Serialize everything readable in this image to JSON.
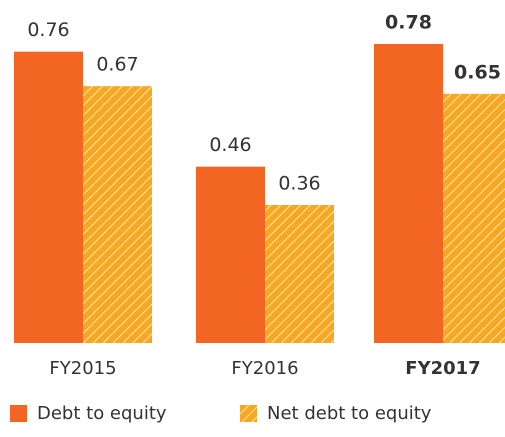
{
  "chart_data": {
    "type": "bar",
    "categories": [
      "FY2015",
      "FY2016",
      "FY2017"
    ],
    "series": [
      {
        "name": "Debt to equity",
        "color": "#f26522",
        "values": [
          0.76,
          0.46,
          0.78
        ]
      },
      {
        "name": "Net debt to equity",
        "color": "#f7a823",
        "pattern": "hatch",
        "values": [
          0.67,
          0.36,
          0.65
        ]
      }
    ],
    "highlight": 2,
    "legend": "bottom-left"
  }
}
